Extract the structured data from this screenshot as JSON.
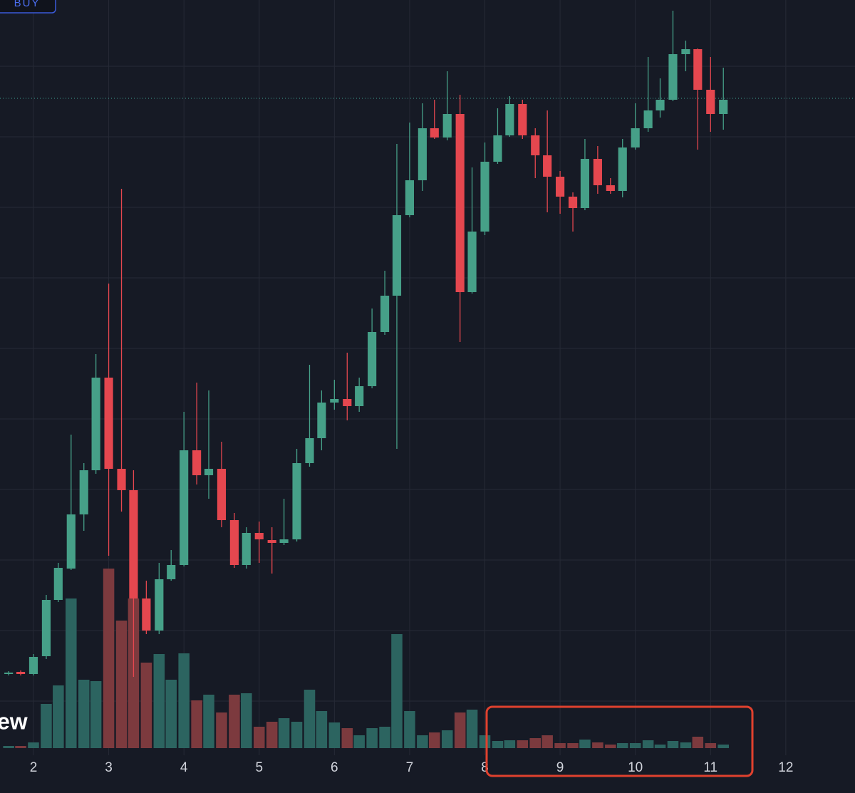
{
  "buy_button": "BUY",
  "logo_text": "ew",
  "chart_data": {
    "type": "candlestick",
    "x": [
      1.67,
      1.83,
      2,
      2.17,
      2.33,
      2.5,
      2.67,
      2.83,
      3,
      3.17,
      3.33,
      3.5,
      3.67,
      3.83,
      4,
      4.17,
      4.33,
      4.5,
      4.67,
      4.83,
      5,
      5.17,
      5.33,
      5.5,
      5.67,
      5.83,
      6,
      6.17,
      6.33,
      6.5,
      6.67,
      6.83,
      7,
      7.17,
      7.33,
      7.5,
      7.67,
      7.83,
      8,
      8.17,
      8.33,
      8.5,
      8.67,
      8.83,
      9,
      9.17,
      9.33,
      9.5,
      9.67,
      9.83,
      10,
      10.17,
      10.33,
      10.5,
      10.67,
      10.83,
      11,
      11.17
    ],
    "open": [
      137,
      140,
      137,
      162,
      241,
      285,
      361,
      423,
      553,
      425,
      395,
      243,
      198,
      270,
      290,
      451,
      416,
      425,
      353,
      290,
      335,
      325,
      321,
      326,
      433,
      468,
      518,
      523,
      513,
      541,
      617,
      668,
      781,
      830,
      903,
      890,
      923,
      673,
      758,
      856,
      893,
      937,
      893,
      865,
      835,
      807,
      791,
      860,
      823,
      815,
      876,
      903,
      928,
      943,
      1007,
      1014,
      957,
      923
    ],
    "high": [
      141,
      142,
      165,
      248,
      293,
      473,
      433,
      586,
      685,
      818,
      423,
      268,
      293,
      311,
      505,
      546,
      535,
      463,
      363,
      343,
      351,
      343,
      383,
      453,
      571,
      535,
      550,
      588,
      553,
      650,
      703,
      881,
      911,
      938,
      943,
      983,
      950,
      848,
      883,
      931,
      948,
      943,
      903,
      928,
      843,
      813,
      888,
      878,
      833,
      888,
      938,
      1003,
      973,
      1068,
      1026,
      1015,
      1003,
      988
    ],
    "low": [
      135,
      135,
      135,
      158,
      238,
      283,
      338,
      418,
      303,
      365,
      133,
      193,
      193,
      268,
      288,
      403,
      383,
      343,
      286,
      285,
      293,
      278,
      318,
      323,
      428,
      451,
      508,
      493,
      505,
      538,
      613,
      453,
      778,
      815,
      888,
      886,
      603,
      671,
      753,
      853,
      891,
      888,
      833,
      785,
      783,
      758,
      788,
      811,
      811,
      806,
      873,
      898,
      918,
      941,
      983,
      873,
      898,
      901
    ],
    "close": [
      139,
      137,
      161,
      241,
      286,
      361,
      423,
      553,
      425,
      395,
      243,
      198,
      270,
      290,
      451,
      416,
      425,
      353,
      290,
      335,
      326,
      321,
      326,
      433,
      468,
      518,
      523,
      513,
      541,
      617,
      668,
      781,
      830,
      903,
      890,
      923,
      673,
      758,
      856,
      893,
      937,
      893,
      865,
      835,
      807,
      791,
      860,
      823,
      815,
      876,
      903,
      928,
      943,
      1007,
      1014,
      957,
      923,
      943
    ],
    "volume": [
      3,
      3,
      8,
      62,
      88,
      210,
      96,
      94,
      252,
      179,
      210,
      120,
      132,
      96,
      133,
      67,
      75,
      50,
      75,
      77,
      30,
      37,
      42,
      37,
      82,
      52,
      36,
      28,
      18,
      28,
      30,
      160,
      52,
      18,
      22,
      25,
      50,
      54,
      18,
      10,
      11,
      11,
      14,
      18,
      7,
      7,
      12,
      8,
      5,
      7,
      7,
      11,
      5,
      10,
      8,
      16,
      7,
      5
    ],
    "xlim": [
      1.555,
      12.92
    ],
    "xticks": [
      2,
      3,
      4,
      5,
      6,
      7,
      8,
      9,
      10,
      11,
      12
    ],
    "ylim": [
      33,
      1083
    ],
    "yticks": [
      99,
      198,
      297,
      396,
      495,
      594,
      693,
      792,
      891,
      990
    ],
    "y2lim": [
      0,
      1050
    ],
    "price_line": 945,
    "grid": true,
    "up_color": "#46a088",
    "down_color": "#e5474f",
    "volume_up_color": "#2c6460",
    "volume_down_color": "#7c3a3e",
    "price_line_color": "#3fa391"
  }
}
